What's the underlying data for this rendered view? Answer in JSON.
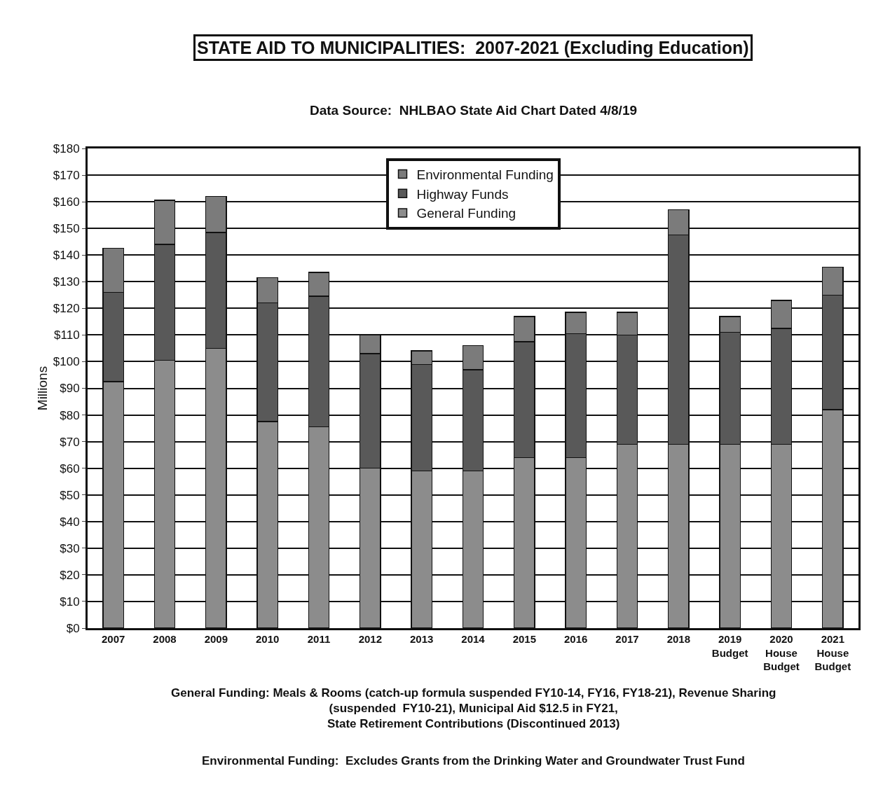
{
  "chart_data": {
    "type": "bar",
    "stacked": true,
    "title": "STATE AID TO MUNICIPALITIES:  2007-2021 (Excluding Education)",
    "subtitle": "Data Source:  NHLBAO State Aid Chart Dated 4/8/19",
    "ylabel": "Millions",
    "categories": [
      "2007",
      "2008",
      "2009",
      "2010",
      "2011",
      "2012",
      "2013",
      "2014",
      "2015",
      "2016",
      "2017",
      "2018",
      "2019\nBudget",
      "2020\nHouse\nBudget",
      "2021\nHouse\nBudget"
    ],
    "series": [
      {
        "name": "General Funding",
        "color": "#8c8c8c",
        "values": [
          92.5,
          100.5,
          105,
          77.5,
          75.5,
          60,
          59,
          59,
          64,
          64,
          69,
          69,
          69,
          69,
          82
        ]
      },
      {
        "name": "Highway Funds",
        "color": "#595959",
        "values": [
          33.5,
          43.5,
          43.5,
          44.5,
          49,
          43,
          40,
          38,
          43.5,
          46.5,
          41,
          78.5,
          42,
          43.5,
          43
        ]
      },
      {
        "name": "Environmental Funding",
        "color": "#7b7b7b",
        "values": [
          16.5,
          16.5,
          13.5,
          9.5,
          9,
          7,
          5,
          9,
          9.5,
          8,
          8.5,
          9.5,
          6,
          10.5,
          10.5
        ]
      }
    ],
    "ylim": [
      0,
      180
    ],
    "yticks": [
      {
        "value": 0,
        "label": "$0"
      },
      {
        "value": 10,
        "label": "$10"
      },
      {
        "value": 20,
        "label": "$20"
      },
      {
        "value": 30,
        "label": "$30"
      },
      {
        "value": 40,
        "label": "$40"
      },
      {
        "value": 50,
        "label": "$50"
      },
      {
        "value": 60,
        "label": "$60"
      },
      {
        "value": 70,
        "label": "$70"
      },
      {
        "value": 80,
        "label": "$80"
      },
      {
        "value": 90,
        "label": "$90"
      },
      {
        "value": 100,
        "label": "$100"
      },
      {
        "value": 110,
        "label": "$110"
      },
      {
        "value": 120,
        "label": "$120"
      },
      {
        "value": 130,
        "label": "$130"
      },
      {
        "value": 140,
        "label": "$140"
      },
      {
        "value": 150,
        "label": "$150"
      },
      {
        "value": 160,
        "label": "$160"
      },
      {
        "value": 170,
        "label": "$170"
      },
      {
        "value": 180,
        "label": "$180"
      }
    ],
    "grid": "y",
    "legend": "top",
    "annotations": [
      "General Funding: Meals & Rooms (catch-up formula suspended FY10-14, FY16, FY18-21), Revenue Sharing\n(suspended  FY10-21), Municipal Aid $12.5 in FY21,\nState Retirement Contributions (Discontinued 2013)",
      "Environmental Funding:  Excludes Grants from the Drinking Water and Groundwater Trust Fund"
    ]
  }
}
